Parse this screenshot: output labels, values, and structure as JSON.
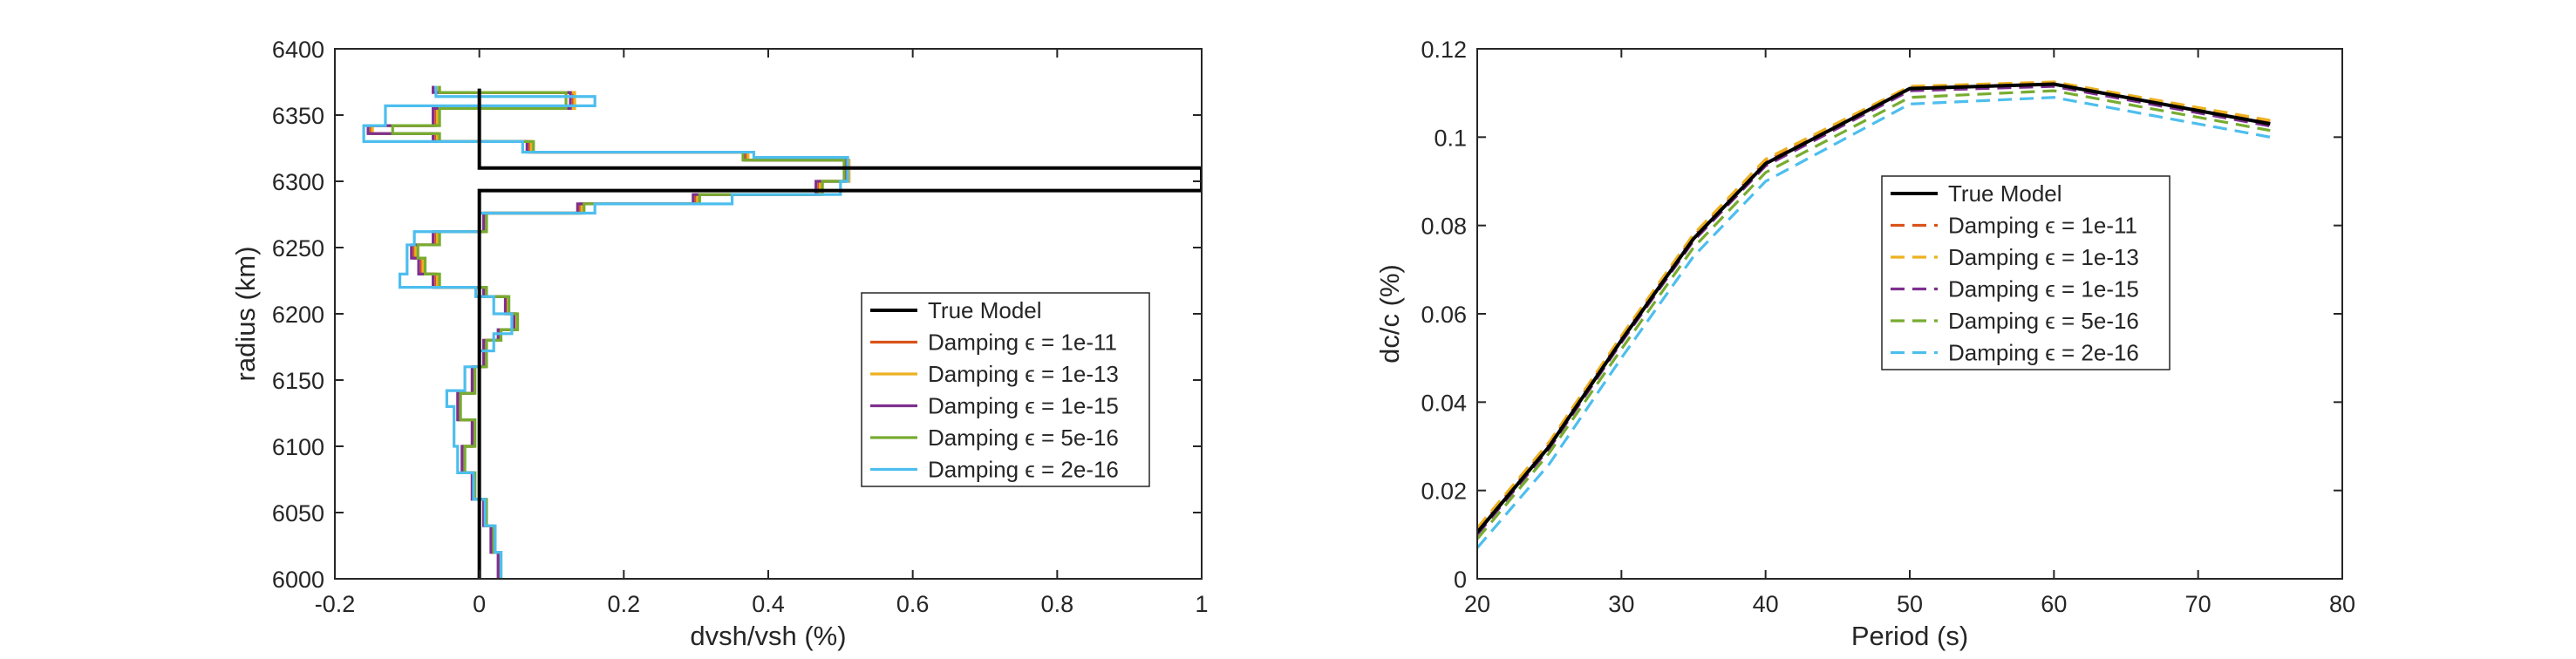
{
  "chart_data": [
    {
      "type": "line",
      "orientation": "profile",
      "xlabel": "dvsh/vsh (%)",
      "ylabel": "radius (km)",
      "xlim": [
        -0.2,
        1
      ],
      "ylim": [
        6000,
        6400
      ],
      "xticks": [
        "-0.2",
        "0",
        "0.2",
        "0.4",
        "0.6",
        "0.8",
        "1"
      ],
      "yticks": [
        "6000",
        "6050",
        "6100",
        "6150",
        "6200",
        "6250",
        "6300",
        "6350",
        "6400"
      ],
      "grid": false,
      "legend_position": "lower-right",
      "epsilon_symbol": "ϵ",
      "series": [
        {
          "name": "True Model",
          "color": "#000000",
          "dashed": false,
          "x": [
            0,
            0,
            1,
            1,
            0,
            0
          ],
          "y": [
            6000,
            6293,
            6293,
            6310,
            6310,
            6370
          ]
        },
        {
          "name": "Damping ϵ = 1e-11",
          "color": "#D95319",
          "dashed": false,
          "x": [
            0.028,
            0.028,
            0.018,
            0.018,
            0.008,
            0.008,
            -0.008,
            -0.008,
            -0.022,
            -0.022,
            -0.008,
            -0.008,
            -0.028,
            -0.028,
            -0.008,
            -0.008,
            0.008,
            0.008,
            0.028,
            0.028,
            0.05,
            0.05,
            0.038,
            0.038,
            0.008,
            0.008,
            -0.06,
            -0.06,
            -0.08,
            -0.08,
            -0.09,
            -0.09,
            -0.06,
            -0.06,
            0.008,
            0.008,
            0.14,
            0.14,
            0.3,
            0.3,
            0.47,
            0.47,
            0.51,
            0.51,
            0.37,
            0.37,
            0.07,
            0.07,
            -0.06,
            -0.06,
            -0.15,
            -0.15,
            -0.06,
            -0.06,
            0.13,
            0.13,
            -0.06,
            -0.06
          ],
          "y": [
            6000,
            6020,
            6020,
            6040,
            6040,
            6060,
            6060,
            6080,
            6080,
            6100,
            6100,
            6120,
            6120,
            6140,
            6140,
            6160,
            6160,
            6180,
            6180,
            6188,
            6188,
            6200,
            6200,
            6213,
            6213,
            6220,
            6220,
            6230,
            6230,
            6242,
            6242,
            6252,
            6252,
            6262,
            6262,
            6276,
            6276,
            6283,
            6283,
            6290,
            6290,
            6300,
            6300,
            6316,
            6316,
            6322,
            6322,
            6330,
            6330,
            6336,
            6336,
            6342,
            6342,
            6355,
            6355,
            6367,
            6367,
            6372
          ]
        },
        {
          "name": "Damping ϵ = 1e-13",
          "color": "#EDB120",
          "dashed": false,
          "x": [
            0.029,
            0.029,
            0.019,
            0.019,
            0.009,
            0.009,
            -0.007,
            -0.007,
            -0.021,
            -0.021,
            -0.007,
            -0.007,
            -0.027,
            -0.027,
            -0.007,
            -0.007,
            0.009,
            0.009,
            0.029,
            0.029,
            0.051,
            0.051,
            0.039,
            0.039,
            0.009,
            0.009,
            -0.058,
            -0.058,
            -0.078,
            -0.078,
            -0.088,
            -0.088,
            -0.058,
            -0.058,
            0.009,
            0.009,
            0.142,
            0.142,
            0.302,
            0.302,
            0.472,
            0.472,
            0.512,
            0.512,
            0.372,
            0.372,
            0.072,
            0.072,
            -0.058,
            -0.058,
            -0.148,
            -0.148,
            -0.058,
            -0.058,
            0.132,
            0.132,
            -0.058,
            -0.058
          ],
          "y": [
            6000,
            6020,
            6020,
            6040,
            6040,
            6060,
            6060,
            6080,
            6080,
            6100,
            6100,
            6120,
            6120,
            6140,
            6140,
            6160,
            6160,
            6180,
            6180,
            6188,
            6188,
            6200,
            6200,
            6213,
            6213,
            6220,
            6220,
            6230,
            6230,
            6242,
            6242,
            6252,
            6252,
            6262,
            6262,
            6276,
            6276,
            6283,
            6283,
            6290,
            6290,
            6300,
            6300,
            6316,
            6316,
            6322,
            6322,
            6330,
            6330,
            6336,
            6336,
            6342,
            6342,
            6355,
            6355,
            6367,
            6367,
            6372
          ]
        },
        {
          "name": "Damping ϵ = 1e-15",
          "color": "#7E2F8E",
          "dashed": false,
          "x": [
            0.026,
            0.026,
            0.016,
            0.016,
            0.006,
            0.006,
            -0.01,
            -0.01,
            -0.024,
            -0.024,
            -0.01,
            -0.01,
            -0.03,
            -0.03,
            -0.01,
            -0.01,
            0.006,
            0.006,
            0.026,
            0.026,
            0.048,
            0.048,
            0.036,
            0.036,
            0.006,
            0.006,
            -0.064,
            -0.064,
            -0.084,
            -0.084,
            -0.094,
            -0.094,
            -0.064,
            -0.064,
            0.006,
            0.006,
            0.136,
            0.136,
            0.296,
            0.296,
            0.466,
            0.466,
            0.506,
            0.506,
            0.366,
            0.366,
            0.066,
            0.066,
            -0.064,
            -0.064,
            -0.154,
            -0.154,
            -0.064,
            -0.064,
            0.126,
            0.126,
            -0.064,
            -0.064
          ],
          "y": [
            6000,
            6020,
            6020,
            6040,
            6040,
            6060,
            6060,
            6080,
            6080,
            6100,
            6100,
            6120,
            6120,
            6140,
            6140,
            6160,
            6160,
            6180,
            6180,
            6188,
            6188,
            6200,
            6200,
            6213,
            6213,
            6220,
            6220,
            6230,
            6230,
            6242,
            6242,
            6252,
            6252,
            6262,
            6262,
            6276,
            6276,
            6283,
            6283,
            6290,
            6290,
            6300,
            6300,
            6316,
            6316,
            6322,
            6322,
            6330,
            6330,
            6336,
            6336,
            6342,
            6342,
            6355,
            6355,
            6367,
            6367,
            6372
          ]
        },
        {
          "name": "Damping ϵ = 5e-16",
          "color": "#77AC30",
          "dashed": false,
          "x": [
            0.03,
            0.03,
            0.02,
            0.02,
            0.01,
            0.01,
            -0.006,
            -0.006,
            -0.02,
            -0.02,
            -0.006,
            -0.006,
            -0.026,
            -0.026,
            -0.006,
            -0.006,
            0.01,
            0.01,
            0.03,
            0.03,
            0.053,
            0.053,
            0.041,
            0.041,
            0.01,
            0.01,
            -0.055,
            -0.055,
            -0.075,
            -0.075,
            -0.085,
            -0.085,
            -0.055,
            -0.055,
            0.01,
            0.01,
            0.145,
            0.145,
            0.305,
            0.305,
            0.475,
            0.475,
            0.505,
            0.505,
            0.365,
            0.365,
            0.075,
            0.075,
            -0.055,
            -0.055,
            -0.12,
            -0.12,
            -0.055,
            -0.055,
            0.12,
            0.12,
            -0.055,
            -0.055
          ],
          "y": [
            6000,
            6020,
            6020,
            6040,
            6040,
            6060,
            6060,
            6080,
            6080,
            6100,
            6100,
            6120,
            6120,
            6140,
            6140,
            6160,
            6160,
            6180,
            6180,
            6188,
            6188,
            6200,
            6200,
            6213,
            6213,
            6220,
            6220,
            6230,
            6230,
            6242,
            6242,
            6252,
            6252,
            6262,
            6262,
            6276,
            6276,
            6283,
            6283,
            6290,
            6290,
            6300,
            6300,
            6316,
            6316,
            6322,
            6322,
            6330,
            6330,
            6336,
            6336,
            6342,
            6342,
            6355,
            6355,
            6367,
            6367,
            6372
          ]
        },
        {
          "name": "Damping ϵ = 2e-16",
          "color": "#4DBEEE",
          "dashed": false,
          "x": [
            0.03,
            0.03,
            0.022,
            0.022,
            0.008,
            0.008,
            -0.008,
            -0.008,
            -0.03,
            -0.03,
            -0.035,
            -0.035,
            -0.045,
            -0.045,
            -0.02,
            -0.02,
            0.0,
            0.0,
            0.02,
            0.02,
            0.045,
            0.045,
            0.02,
            0.02,
            -0.005,
            -0.005,
            -0.11,
            -0.11,
            -0.1,
            -0.1,
            -0.1,
            -0.1,
            -0.09,
            -0.09,
            0.0,
            0.0,
            0.16,
            0.16,
            0.35,
            0.35,
            0.5,
            0.5,
            0.51,
            0.51,
            0.38,
            0.38,
            0.06,
            0.06,
            -0.16,
            -0.16,
            -0.13,
            -0.13,
            0.16,
            0.16,
            -0.06,
            -0.06
          ],
          "y": [
            6000,
            6020,
            6020,
            6040,
            6040,
            6060,
            6060,
            6080,
            6080,
            6100,
            6100,
            6130,
            6130,
            6142,
            6142,
            6160,
            6160,
            6172,
            6172,
            6185,
            6185,
            6200,
            6200,
            6213,
            6213,
            6220,
            6220,
            6230,
            6230,
            6245,
            6245,
            6252,
            6252,
            6262,
            6262,
            6276,
            6276,
            6283,
            6283,
            6290,
            6290,
            6300,
            6300,
            6318,
            6318,
            6322,
            6322,
            6330,
            6330,
            6342,
            6342,
            6357,
            6357,
            6364,
            6364,
            6372
          ]
        }
      ]
    },
    {
      "type": "line",
      "orientation": "normal",
      "xlabel": "Period (s)",
      "ylabel": "dc/c (%)",
      "xlim": [
        20,
        80
      ],
      "ylim": [
        0,
        0.12
      ],
      "xticks": [
        "20",
        "30",
        "40",
        "50",
        "60",
        "70",
        "80"
      ],
      "yticks": [
        "0",
        "0.02",
        "0.04",
        "0.06",
        "0.08",
        "0.1",
        "0.12"
      ],
      "grid": false,
      "legend_position": "center",
      "epsilon_symbol": "ϵ",
      "series": [
        {
          "name": "True Model",
          "color": "#000000",
          "dashed": false,
          "x": [
            20,
            25,
            30,
            35,
            40,
            50,
            60,
            75
          ],
          "y": [
            0.0105,
            0.03,
            0.054,
            0.077,
            0.094,
            0.111,
            0.112,
            0.103
          ]
        },
        {
          "name": "Damping ϵ = 1e-11",
          "color": "#D95319",
          "dashed": true,
          "x": [
            20,
            25,
            30,
            35,
            40,
            50,
            60,
            75
          ],
          "y": [
            0.011,
            0.0305,
            0.0545,
            0.0775,
            0.0945,
            0.1112,
            0.1122,
            0.1035
          ]
        },
        {
          "name": "Damping ϵ = 1e-13",
          "color": "#EDB120",
          "dashed": true,
          "x": [
            20,
            25,
            30,
            35,
            40,
            50,
            60,
            75
          ],
          "y": [
            0.0115,
            0.031,
            0.055,
            0.078,
            0.095,
            0.1115,
            0.1125,
            0.1038
          ]
        },
        {
          "name": "Damping ϵ = 1e-15",
          "color": "#7E2F8E",
          "dashed": true,
          "x": [
            20,
            25,
            30,
            35,
            40,
            50,
            60,
            75
          ],
          "y": [
            0.01,
            0.0295,
            0.0535,
            0.0765,
            0.0935,
            0.1105,
            0.1115,
            0.1025
          ]
        },
        {
          "name": "Damping ϵ = 5e-16",
          "color": "#77AC30",
          "dashed": true,
          "x": [
            20,
            25,
            30,
            35,
            40,
            50,
            60,
            75
          ],
          "y": [
            0.009,
            0.0285,
            0.052,
            0.075,
            0.092,
            0.109,
            0.1105,
            0.1015
          ]
        },
        {
          "name": "Damping ϵ = 2e-16",
          "color": "#4DBEEE",
          "dashed": true,
          "x": [
            20,
            25,
            30,
            35,
            40,
            50,
            60,
            75
          ],
          "y": [
            0.007,
            0.026,
            0.05,
            0.073,
            0.09,
            0.1075,
            0.109,
            0.1
          ]
        }
      ]
    }
  ]
}
